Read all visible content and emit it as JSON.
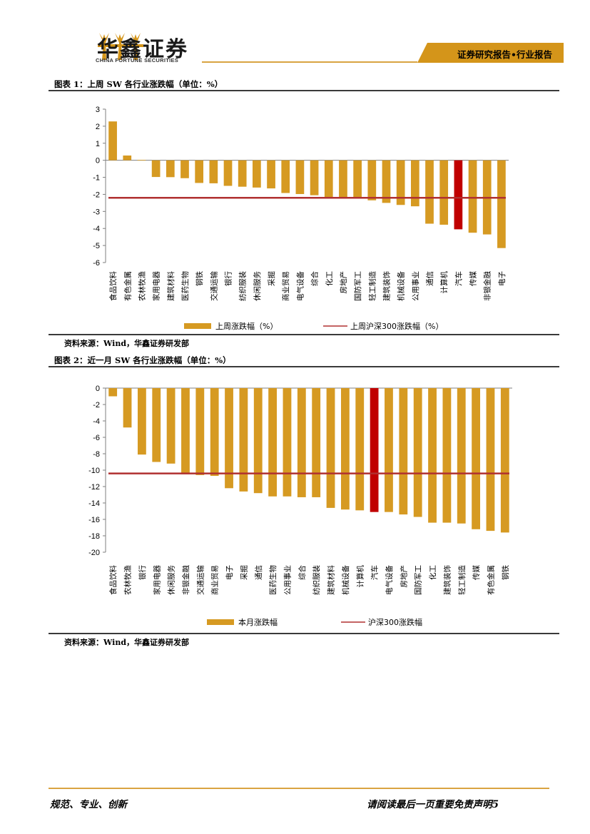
{
  "header": {
    "company_cn": "华鑫证券",
    "company_en": "CHINA FORTUNE SECURITIES",
    "report_tag": "证券研究报告•行业报告",
    "colors": {
      "gold": "#d4951a",
      "bar": "#d69a22",
      "highlight": "#c00000",
      "line": "#b03030"
    }
  },
  "figure1": {
    "title": "图表 1：上周 SW 各行业涨跌幅（单位：%）",
    "source": "资料来源：Wind，华鑫证券研发部"
  },
  "figure2": {
    "title": "图表 2：近一月 SW 各行业涨跌幅（单位：%）",
    "source": "资料来源：Wind，华鑫证券研发部"
  },
  "chart_data": [
    {
      "type": "bar",
      "title": "上周 SW 各行业涨跌幅",
      "categories": [
        "食品饮料",
        "有色金属",
        "农林牧渔",
        "家用电器",
        "建筑材料",
        "医药生物",
        "钢铁",
        "交通运输",
        "银行",
        "纺织服装",
        "休闲服务",
        "采掘",
        "商业贸易",
        "电气设备",
        "综合",
        "化工",
        "房地产",
        "国防军工",
        "轻工制造",
        "建筑装饰",
        "机械设备",
        "公用事业",
        "通信",
        "计算机",
        "汽车",
        "传媒",
        "非银金融",
        "电子"
      ],
      "values": [
        2.28,
        0.28,
        0.02,
        -0.98,
        -0.99,
        -1.05,
        -1.33,
        -1.35,
        -1.5,
        -1.55,
        -1.6,
        -1.65,
        -1.92,
        -1.98,
        -2.05,
        -2.18,
        -2.22,
        -2.25,
        -2.35,
        -2.5,
        -2.62,
        -2.7,
        -3.72,
        -3.78,
        -4.05,
        -4.25,
        -4.35,
        -5.15
      ],
      "highlight_category": "汽车",
      "reference_value": -2.2,
      "ylim": [
        -6,
        3
      ],
      "yticks": [
        3,
        2,
        1,
        0,
        -1,
        -2,
        -3,
        -4,
        -5,
        -6
      ],
      "legend": [
        "上周涨跌幅（%）",
        "上周沪深300涨跌幅（%）"
      ]
    },
    {
      "type": "bar",
      "title": "近一月 SW 各行业涨跌幅",
      "categories": [
        "食品饮料",
        "农林牧渔",
        "银行",
        "家用电器",
        "休闲服务",
        "非银金融",
        "交通运输",
        "商业贸易",
        "电子",
        "采掘",
        "通信",
        "医药生物",
        "公用事业",
        "综合",
        "纺织服装",
        "建筑材料",
        "机械设备",
        "计算机",
        "汽车",
        "电气设备",
        "房地产",
        "国防军工",
        "化工",
        "建筑装饰",
        "轻工制造",
        "传媒",
        "有色金属",
        "钢铁"
      ],
      "values": [
        -1.0,
        -4.8,
        -8.1,
        -9.0,
        -9.2,
        -10.5,
        -10.6,
        -10.7,
        -12.2,
        -12.6,
        -12.8,
        -13.2,
        -13.2,
        -13.3,
        -13.3,
        -14.6,
        -14.8,
        -14.9,
        -15.1,
        -15.1,
        -15.4,
        -15.7,
        -16.4,
        -16.4,
        -16.5,
        -17.2,
        -17.4,
        -17.6
      ],
      "highlight_category": "汽车",
      "reference_value": -10.4,
      "ylim": [
        -20,
        0
      ],
      "yticks": [
        0,
        -2,
        -4,
        -6,
        -8,
        -10,
        -12,
        -14,
        -16,
        -18,
        -20
      ],
      "legend": [
        "本月涨跌幅",
        "沪深300涨跌幅"
      ]
    }
  ],
  "footer": {
    "left": "规范、专业、创新",
    "right": "请阅读最后一页重要免责声明5"
  }
}
